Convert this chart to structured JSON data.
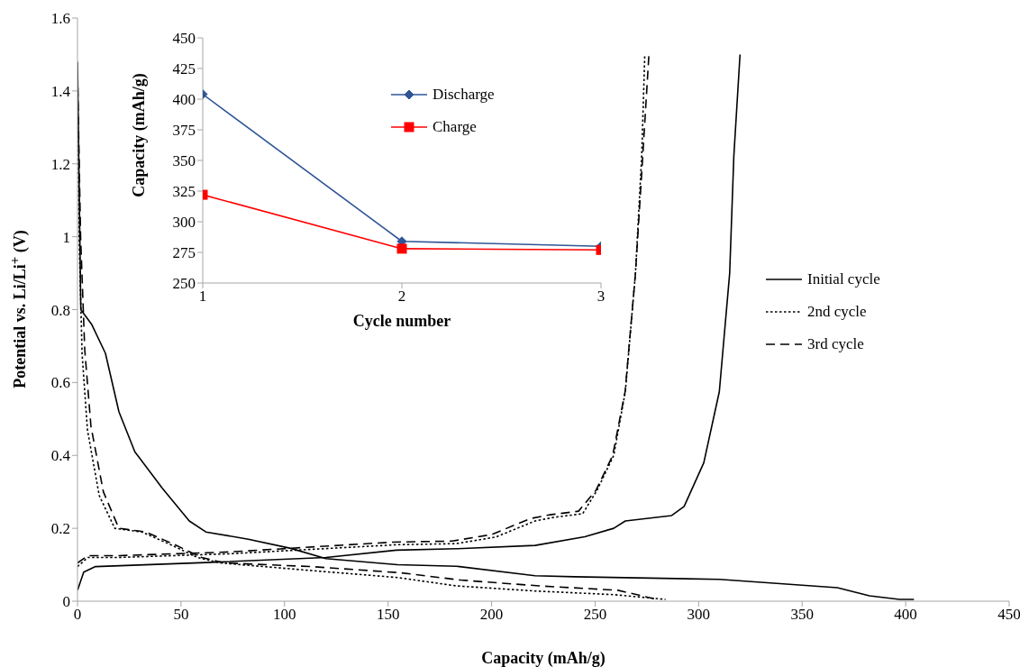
{
  "chart_data": [
    {
      "type": "line",
      "xlabel": "Capacity (mAh/g)",
      "ylabel": "Potential vs. Li/Li$^{+}$ (V)",
      "xlim": [
        0,
        450
      ],
      "xticks": [
        0,
        50,
        100,
        150,
        200,
        250,
        300,
        350,
        400,
        450
      ],
      "ylim": [
        0,
        1.6
      ],
      "yticks": [
        0,
        0.2,
        0.4,
        0.6,
        0.8,
        1,
        1.2,
        1.4,
        1.6
      ],
      "grid": false,
      "legend": "right",
      "series": [
        {
          "name": "Initial cycle",
          "color": "#000000",
          "line_style": "solid",
          "x": [
            0,
            1.6,
            6.8,
            13.5,
            20,
            27.7,
            41,
            54,
            62,
            82.5,
            103,
            120,
            154.5,
            183,
            221,
            240,
            310,
            367,
            382.5,
            397,
            404
          ],
          "values": [
            1.48,
            0.8,
            0.76,
            0.68,
            0.52,
            0.41,
            0.31,
            0.22,
            0.19,
            0.17,
            0.145,
            0.117,
            0.1,
            0.096,
            0.07,
            0.067,
            0.06,
            0.037,
            0.015,
            0.005,
            0.005
          ]
        },
        {
          "color": "#000000",
          "line_style": "solid",
          "x": [
            0,
            3,
            8.7,
            62,
            120,
            154,
            183,
            221,
            245,
            259,
            264.6,
            287,
            293,
            302.5,
            310,
            315,
            317,
            320
          ],
          "values": [
            0.03,
            0.08,
            0.095,
            0.106,
            0.12,
            0.14,
            0.144,
            0.153,
            0.177,
            0.2,
            0.22,
            0.235,
            0.26,
            0.38,
            0.575,
            0.9,
            1.22,
            1.5
          ]
        },
        {
          "name": "2nd cycle",
          "color": "#000000",
          "line_style": "dotted",
          "x": [
            0,
            0.8,
            2.2,
            4.8,
            10.5,
            18,
            31,
            45,
            58,
            69,
            111,
            154.5,
            183,
            221,
            259,
            284
          ],
          "values": [
            1.45,
            1.0,
            0.68,
            0.47,
            0.29,
            0.2,
            0.19,
            0.155,
            0.12,
            0.105,
            0.085,
            0.065,
            0.042,
            0.028,
            0.018,
            0.005
          ]
        },
        {
          "color": "#000000",
          "line_style": "dotted",
          "x": [
            0,
            5,
            20,
            73,
            154.5,
            183,
            202,
            221,
            230,
            244,
            251,
            259,
            264.6,
            269.5,
            272.5,
            274
          ],
          "values": [
            0.095,
            0.12,
            0.12,
            0.13,
            0.155,
            0.158,
            0.176,
            0.22,
            0.23,
            0.24,
            0.305,
            0.4,
            0.575,
            0.9,
            1.22,
            1.5
          ]
        },
        {
          "name": "3rd cycle",
          "color": "#000000",
          "line_style": "dashed",
          "x": [
            0,
            1.5,
            3.5,
            6.5,
            12.5,
            20,
            33,
            47,
            60,
            71,
            113,
            156,
            185,
            223,
            261,
            280
          ],
          "values": [
            1.45,
            1.0,
            0.69,
            0.48,
            0.3,
            0.2,
            0.19,
            0.155,
            0.12,
            0.105,
            0.095,
            0.078,
            0.058,
            0.042,
            0.03,
            0.005
          ]
        },
        {
          "color": "#000000",
          "line_style": "dashed",
          "x": [
            0,
            5,
            20,
            73,
            152,
            181,
            200,
            219,
            228,
            242,
            250.5,
            258.5,
            264.5,
            269.5,
            273,
            276
          ],
          "values": [
            0.105,
            0.125,
            0.125,
            0.135,
            0.162,
            0.165,
            0.183,
            0.227,
            0.237,
            0.247,
            0.305,
            0.4,
            0.575,
            0.9,
            1.22,
            1.5
          ]
        }
      ]
    },
    {
      "type": "line",
      "xlabel": "Cycle number",
      "ylabel": "Capacity (mAh/g)",
      "x": [
        1,
        2,
        3
      ],
      "xlim": [
        1,
        3
      ],
      "xticks": [
        1,
        2,
        3
      ],
      "ylim": [
        250,
        450
      ],
      "yticks": [
        250,
        275,
        300,
        325,
        350,
        375,
        400,
        425,
        450
      ],
      "grid": false,
      "legend": "top right",
      "series": [
        {
          "name": "Discharge",
          "color": "#2f5597",
          "marker": "diamond",
          "values": [
            404,
            284,
            280
          ]
        },
        {
          "name": "Charge",
          "color": "#ff0000",
          "marker": "square",
          "values": [
            322,
            278,
            277
          ]
        }
      ]
    }
  ]
}
